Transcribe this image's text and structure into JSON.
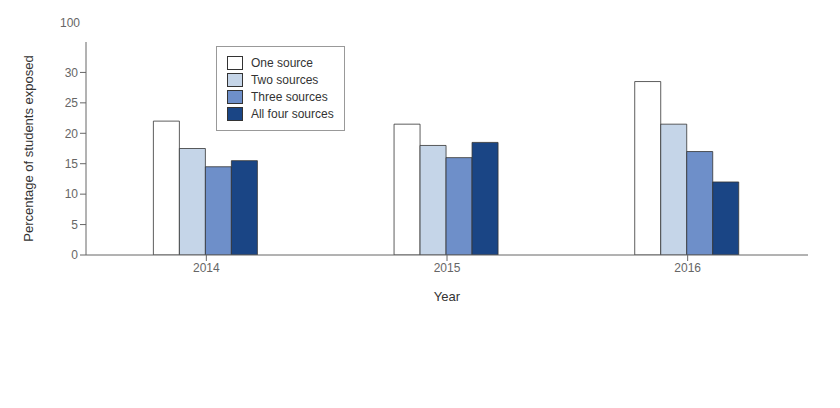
{
  "chart_data": {
    "type": "bar",
    "categories": [
      "2014",
      "2015",
      "2016"
    ],
    "series": [
      {
        "name": "One source",
        "color": "#ffffff",
        "values": [
          22.0,
          21.5,
          28.5
        ]
      },
      {
        "name": "Two sources",
        "color": "#c5d5e8",
        "values": [
          17.5,
          18.0,
          21.5
        ]
      },
      {
        "name": "Three sources",
        "color": "#6e8fc9",
        "values": [
          14.5,
          16.0,
          17.0
        ]
      },
      {
        "name": "All four sources",
        "color": "#1a4585",
        "values": [
          15.5,
          18.5,
          12.0
        ]
      }
    ],
    "xlabel": "Year",
    "ylabel": "Percentage of students exposed",
    "ylim": [
      0,
      35
    ],
    "yticks": [
      0,
      5,
      10,
      15,
      20,
      25,
      30
    ],
    "grid": false,
    "legend": "upper left",
    "annotations": [
      "100"
    ]
  }
}
